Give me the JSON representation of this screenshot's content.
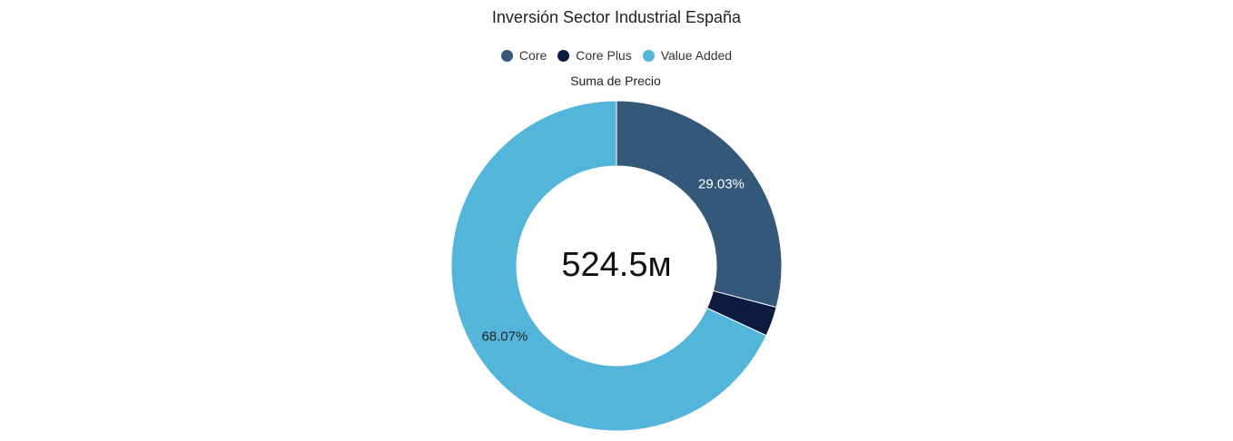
{
  "chart_data": {
    "type": "pie",
    "variant": "donut",
    "title": "Inversión Sector Industrial España",
    "subtitle": "Suma de Precio",
    "center_label": "524.5м",
    "legend_position": "top-center",
    "slices": [
      {
        "name": "Core",
        "percent": 29.03,
        "label": "29.03%",
        "color": "#34587a",
        "label_color": "#ffffff"
      },
      {
        "name": "Core Plus",
        "percent": 2.9,
        "label": "",
        "color": "#0b1a3f",
        "label_color": "#ffffff"
      },
      {
        "name": "Value Added",
        "percent": 68.07,
        "label": "68.07%",
        "color": "#53b5d9",
        "label_color": "#222222"
      }
    ]
  }
}
